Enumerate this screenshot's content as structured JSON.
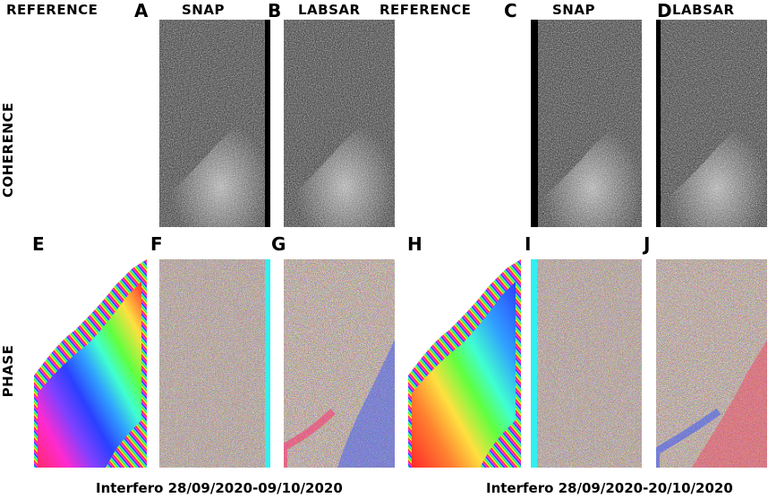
{
  "columns": {
    "ref1": "REFERENCE",
    "snap1": "SNAP",
    "labsar1": "LABSAR",
    "ref2": "REFERENCE",
    "snap2": "SNAP",
    "labsar2": "LABSAR"
  },
  "letters": {
    "A": "A",
    "B": "B",
    "C": "C",
    "D": "D",
    "E": "E",
    "F": "F",
    "G": "G",
    "H": "H",
    "I": "I",
    "J": "J"
  },
  "rows": {
    "coherence": "COHERENCE",
    "phase": "PHASE"
  },
  "captions": {
    "left": "Interfero 28/09/2020-09/10/2020",
    "right": "Interfero 28/09/2020-20/10/2020"
  }
}
